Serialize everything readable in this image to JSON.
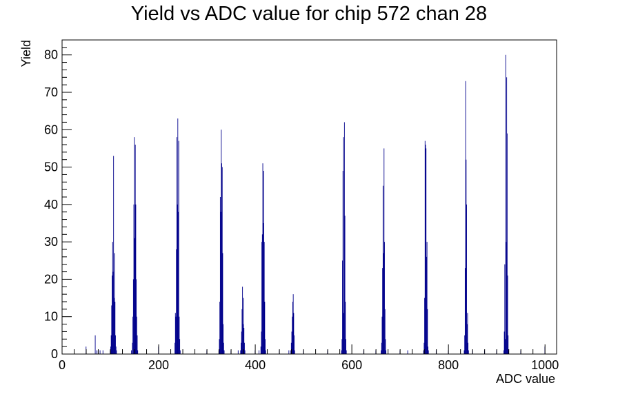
{
  "chart_data": {
    "type": "bar",
    "title": "Yield vs ADC value for chip 572 chan 28",
    "xlabel": "ADC value",
    "ylabel": "Yield",
    "xlim": [
      0,
      1024
    ],
    "ylim": [
      0,
      84
    ],
    "grid": false,
    "legend": "none",
    "color": "#00008b",
    "x_ticks": [
      0,
      200,
      400,
      600,
      800,
      1000
    ],
    "y_ticks": [
      0,
      10,
      20,
      30,
      40,
      50,
      60,
      70,
      80
    ],
    "bins": [
      {
        "x": 49,
        "y": 2
      },
      {
        "x": 68,
        "y": 5
      },
      {
        "x": 71,
        "y": 1
      },
      {
        "x": 74,
        "y": 1
      },
      {
        "x": 78,
        "y": 1
      },
      {
        "x": 84,
        "y": 1
      },
      {
        "x": 99,
        "y": 1
      },
      {
        "x": 100,
        "y": 2
      },
      {
        "x": 101,
        "y": 5
      },
      {
        "x": 102,
        "y": 13
      },
      {
        "x": 103,
        "y": 21
      },
      {
        "x": 104,
        "y": 30
      },
      {
        "x": 105,
        "y": 22
      },
      {
        "x": 106,
        "y": 53
      },
      {
        "x": 107,
        "y": 15
      },
      {
        "x": 108,
        "y": 27
      },
      {
        "x": 109,
        "y": 14
      },
      {
        "x": 110,
        "y": 5
      },
      {
        "x": 111,
        "y": 2
      },
      {
        "x": 112,
        "y": 1
      },
      {
        "x": 143,
        "y": 1
      },
      {
        "x": 145,
        "y": 3
      },
      {
        "x": 146,
        "y": 10
      },
      {
        "x": 147,
        "y": 20
      },
      {
        "x": 148,
        "y": 40
      },
      {
        "x": 149,
        "y": 58
      },
      {
        "x": 150,
        "y": 31
      },
      {
        "x": 151,
        "y": 56
      },
      {
        "x": 152,
        "y": 40
      },
      {
        "x": 153,
        "y": 20
      },
      {
        "x": 154,
        "y": 10
      },
      {
        "x": 155,
        "y": 5
      },
      {
        "x": 156,
        "y": 1
      },
      {
        "x": 199,
        "y": 2
      },
      {
        "x": 233,
        "y": 3
      },
      {
        "x": 234,
        "y": 11
      },
      {
        "x": 235,
        "y": 10
      },
      {
        "x": 236,
        "y": 28
      },
      {
        "x": 237,
        "y": 58
      },
      {
        "x": 238,
        "y": 40
      },
      {
        "x": 239,
        "y": 63
      },
      {
        "x": 240,
        "y": 38
      },
      {
        "x": 241,
        "y": 57
      },
      {
        "x": 242,
        "y": 10
      },
      {
        "x": 243,
        "y": 4
      },
      {
        "x": 244,
        "y": 1
      },
      {
        "x": 299,
        "y": 1
      },
      {
        "x": 324,
        "y": 1
      },
      {
        "x": 325,
        "y": 4
      },
      {
        "x": 326,
        "y": 14
      },
      {
        "x": 327,
        "y": 42
      },
      {
        "x": 328,
        "y": 38
      },
      {
        "x": 329,
        "y": 60
      },
      {
        "x": 330,
        "y": 51
      },
      {
        "x": 331,
        "y": 50
      },
      {
        "x": 332,
        "y": 27
      },
      {
        "x": 333,
        "y": 8
      },
      {
        "x": 334,
        "y": 3
      },
      {
        "x": 335,
        "y": 1
      },
      {
        "x": 349,
        "y": 1
      },
      {
        "x": 364,
        "y": 1
      },
      {
        "x": 369,
        "y": 1
      },
      {
        "x": 370,
        "y": 3
      },
      {
        "x": 371,
        "y": 6
      },
      {
        "x": 372,
        "y": 12
      },
      {
        "x": 373,
        "y": 18
      },
      {
        "x": 374,
        "y": 8
      },
      {
        "x": 375,
        "y": 15
      },
      {
        "x": 376,
        "y": 7
      },
      {
        "x": 377,
        "y": 3
      },
      {
        "x": 378,
        "y": 1
      },
      {
        "x": 399,
        "y": 1
      },
      {
        "x": 407,
        "y": 1
      },
      {
        "x": 411,
        "y": 2
      },
      {
        "x": 412,
        "y": 6
      },
      {
        "x": 413,
        "y": 30
      },
      {
        "x": 414,
        "y": 32
      },
      {
        "x": 415,
        "y": 51
      },
      {
        "x": 416,
        "y": 35
      },
      {
        "x": 417,
        "y": 49
      },
      {
        "x": 418,
        "y": 30
      },
      {
        "x": 419,
        "y": 14
      },
      {
        "x": 420,
        "y": 4
      },
      {
        "x": 421,
        "y": 1
      },
      {
        "x": 449,
        "y": 1
      },
      {
        "x": 469,
        "y": 1
      },
      {
        "x": 473,
        "y": 1
      },
      {
        "x": 474,
        "y": 3
      },
      {
        "x": 475,
        "y": 6
      },
      {
        "x": 476,
        "y": 10
      },
      {
        "x": 477,
        "y": 14
      },
      {
        "x": 478,
        "y": 16
      },
      {
        "x": 479,
        "y": 11
      },
      {
        "x": 480,
        "y": 5
      },
      {
        "x": 481,
        "y": 1
      },
      {
        "x": 499,
        "y": 1
      },
      {
        "x": 549,
        "y": 1
      },
      {
        "x": 578,
        "y": 1
      },
      {
        "x": 579,
        "y": 4
      },
      {
        "x": 580,
        "y": 25
      },
      {
        "x": 581,
        "y": 49
      },
      {
        "x": 582,
        "y": 58
      },
      {
        "x": 583,
        "y": 11
      },
      {
        "x": 584,
        "y": 62
      },
      {
        "x": 585,
        "y": 37
      },
      {
        "x": 586,
        "y": 14
      },
      {
        "x": 587,
        "y": 4
      },
      {
        "x": 588,
        "y": 1
      },
      {
        "x": 624,
        "y": 1
      },
      {
        "x": 649,
        "y": 1
      },
      {
        "x": 660,
        "y": 1
      },
      {
        "x": 661,
        "y": 3
      },
      {
        "x": 662,
        "y": 10
      },
      {
        "x": 663,
        "y": 23
      },
      {
        "x": 664,
        "y": 45
      },
      {
        "x": 665,
        "y": 27
      },
      {
        "x": 666,
        "y": 55
      },
      {
        "x": 667,
        "y": 30
      },
      {
        "x": 668,
        "y": 12
      },
      {
        "x": 669,
        "y": 4
      },
      {
        "x": 670,
        "y": 1
      },
      {
        "x": 699,
        "y": 1
      },
      {
        "x": 715,
        "y": 1
      },
      {
        "x": 748,
        "y": 1
      },
      {
        "x": 749,
        "y": 3
      },
      {
        "x": 750,
        "y": 15
      },
      {
        "x": 751,
        "y": 57
      },
      {
        "x": 752,
        "y": 56
      },
      {
        "x": 753,
        "y": 55
      },
      {
        "x": 754,
        "y": 26
      },
      {
        "x": 755,
        "y": 30
      },
      {
        "x": 756,
        "y": 12
      },
      {
        "x": 757,
        "y": 2
      },
      {
        "x": 758,
        "y": 1
      },
      {
        "x": 774,
        "y": 1
      },
      {
        "x": 799,
        "y": 1
      },
      {
        "x": 832,
        "y": 1
      },
      {
        "x": 833,
        "y": 5
      },
      {
        "x": 834,
        "y": 23
      },
      {
        "x": 835,
        "y": 73
      },
      {
        "x": 836,
        "y": 52
      },
      {
        "x": 837,
        "y": 40
      },
      {
        "x": 838,
        "y": 8
      },
      {
        "x": 839,
        "y": 11
      },
      {
        "x": 840,
        "y": 3
      },
      {
        "x": 841,
        "y": 1
      },
      {
        "x": 849,
        "y": 1
      },
      {
        "x": 874,
        "y": 1
      },
      {
        "x": 899,
        "y": 1
      },
      {
        "x": 914,
        "y": 1
      },
      {
        "x": 915,
        "y": 6
      },
      {
        "x": 916,
        "y": 24
      },
      {
        "x": 917,
        "y": 4
      },
      {
        "x": 918,
        "y": 80
      },
      {
        "x": 919,
        "y": 30
      },
      {
        "x": 920,
        "y": 74
      },
      {
        "x": 921,
        "y": 59
      },
      {
        "x": 922,
        "y": 21
      },
      {
        "x": 923,
        "y": 5
      },
      {
        "x": 924,
        "y": 1
      },
      {
        "x": 949,
        "y": 1
      },
      {
        "x": 999,
        "y": 2
      }
    ]
  }
}
